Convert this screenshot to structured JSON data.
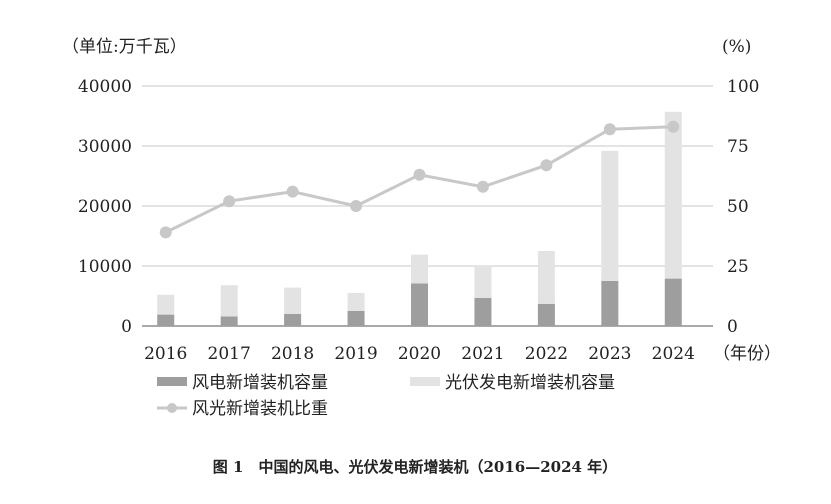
{
  "chart_data": {
    "type": "bar",
    "title": "图 1　中国的风电、光伏发电新增装机（2016—2024 年）",
    "left_unit": "（单位:万千瓦）",
    "right_unit": "(%)",
    "x_unit": "（年份）",
    "categories": [
      "2016",
      "2017",
      "2018",
      "2019",
      "2020",
      "2021",
      "2022",
      "2023",
      "2024"
    ],
    "ylim": [
      0,
      40000
    ],
    "yticks": [
      "0",
      "10000",
      "20000",
      "30000",
      "40000"
    ],
    "y2lim": [
      0,
      100
    ],
    "y2ticks": [
      "0",
      "25",
      "50",
      "75",
      "100"
    ],
    "grid": true,
    "legend_placement": "bottom-left",
    "series": [
      {
        "name": "风电新增装机容量",
        "kind": "stacked-bar",
        "color": "#9e9e9e",
        "values": [
          1900,
          1600,
          2000,
          2500,
          7100,
          4700,
          3700,
          7500,
          7900
        ]
      },
      {
        "name": "光伏发电新增装机容量",
        "kind": "stacked-bar",
        "color": "#e3e3e3",
        "values": [
          3300,
          5200,
          4400,
          3000,
          4800,
          5400,
          8800,
          21700,
          27800
        ]
      },
      {
        "name": "风光新增装机比重",
        "kind": "line",
        "axis": "right",
        "color": "#c8c8c8",
        "values": [
          39,
          52,
          56,
          50,
          63,
          58,
          67,
          82,
          83
        ]
      }
    ]
  }
}
